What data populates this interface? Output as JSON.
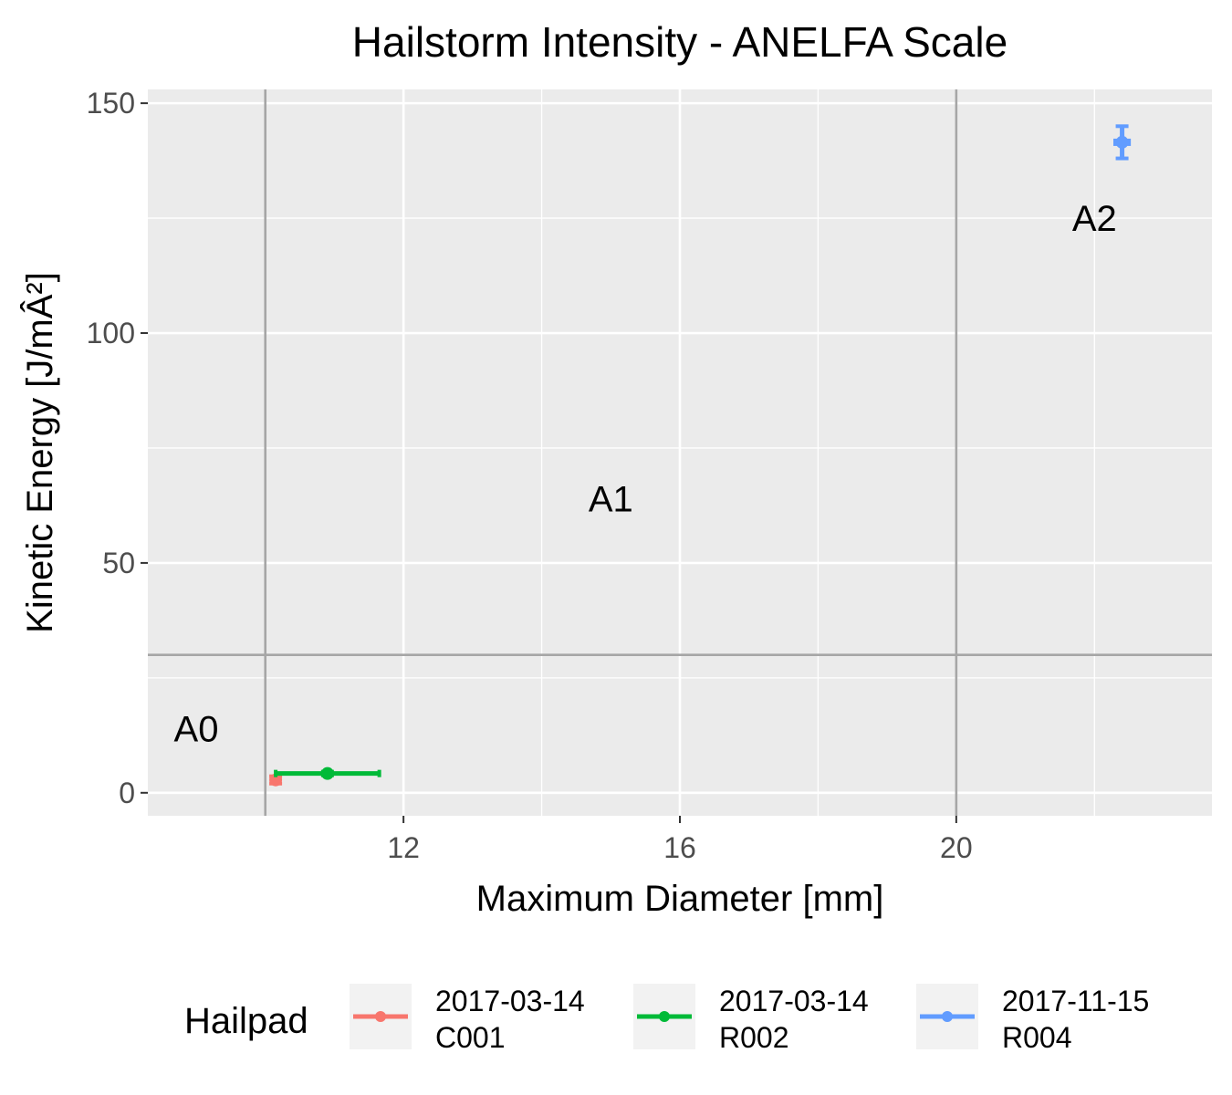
{
  "chart_data": {
    "type": "scatter",
    "title": "Hailstorm Intensity - ANELFA Scale",
    "xlabel": "Maximum Diameter [mm]",
    "ylabel": "Kinetic Energy [J/mÂ²]",
    "xlim": [
      8.3,
      23.7
    ],
    "ylim": [
      -5,
      153
    ],
    "x_ticks": [
      12,
      16,
      20
    ],
    "y_ticks": [
      0,
      50,
      100,
      150
    ],
    "grid": true,
    "thresholds": {
      "x": [
        10,
        20
      ],
      "y": [
        30
      ]
    },
    "zone_labels": [
      {
        "text": "A0",
        "x": 9,
        "y": 14
      },
      {
        "text": "A1",
        "x": 15,
        "y": 64
      },
      {
        "text": "A2",
        "x": 22,
        "y": 125
      }
    ],
    "series": [
      {
        "name": "2017-03-14\nC001",
        "color": "#F8766D",
        "points": [
          {
            "x": 10.15,
            "y": 2.8,
            "xmin": 10.1,
            "xmax": 10.2,
            "ymin": 2.0,
            "ymax": 3.6
          }
        ]
      },
      {
        "name": "2017-03-14\nR002",
        "color": "#00BA38",
        "points": [
          {
            "x": 10.9,
            "y": 4.2,
            "xmin": 10.15,
            "xmax": 11.65,
            "ymin": 3.8,
            "ymax": 4.6
          }
        ]
      },
      {
        "name": "2017-11-15\nR004",
        "color": "#619CFF",
        "points": [
          {
            "x": 22.4,
            "y": 141.5,
            "xmin": 22.3,
            "xmax": 22.5,
            "ymin": 138,
            "ymax": 145
          }
        ]
      }
    ],
    "legend": {
      "title": "Hailpad",
      "position": "bottom"
    }
  }
}
